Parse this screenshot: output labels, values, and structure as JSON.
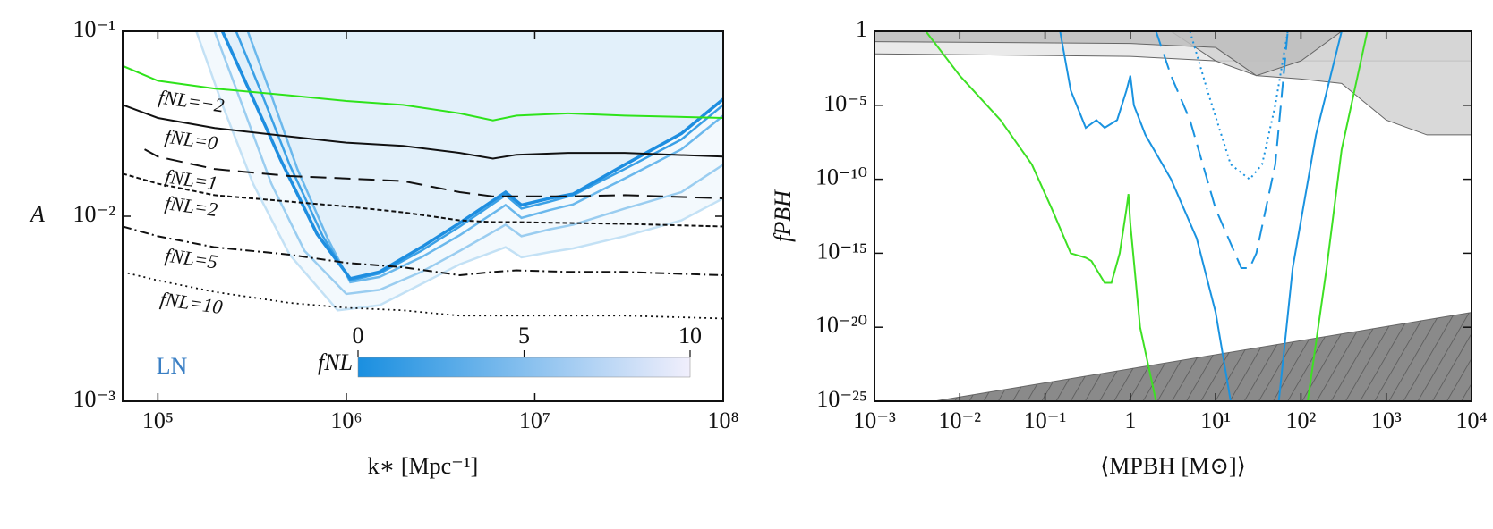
{
  "chart_data": [
    {
      "type": "line",
      "xlabel": "k∗ [Mpc⁻¹]",
      "ylabel": "A",
      "log_x": true,
      "log_y": true,
      "xlim": [
        65000,
        100000000
      ],
      "ylim": [
        0.001,
        0.1
      ],
      "xticks": [
        {
          "value": 100000,
          "label": "10⁵"
        },
        {
          "value": 1000000,
          "label": "10⁶"
        },
        {
          "value": 10000000,
          "label": "10⁷"
        },
        {
          "value": 100000000,
          "label": "10⁸"
        }
      ],
      "yticks": [
        {
          "value": 0.001,
          "label": "10⁻³"
        },
        {
          "value": 0.01,
          "label": "10⁻²"
        },
        {
          "value": 0.1,
          "label": "10⁻¹"
        }
      ],
      "annotation": "LN",
      "colorbar": {
        "label": "fNL",
        "lim": [
          0,
          10
        ],
        "ticks": [
          0,
          5,
          10
        ],
        "colors": [
          "#1a8fe0",
          "#f1effc"
        ]
      },
      "series": [
        {
          "color": "#c3e1f5",
          "width": 2.5,
          "dash": "solid",
          "fill": "#f3f9fd",
          "x": [
            160000,
            220000,
            320000,
            500000,
            900000,
            1500000,
            2500000,
            4000000,
            7000000,
            8500000,
            12000000,
            16000000,
            30000000,
            60000000,
            100000000
          ],
          "values": [
            0.1,
            0.04,
            0.015,
            0.0062,
            0.0031,
            0.0033,
            0.0043,
            0.0055,
            0.0068,
            0.006,
            0.0064,
            0.0067,
            0.0078,
            0.0095,
            0.0125
          ]
        },
        {
          "color": "#9acdf0",
          "width": 2.5,
          "dash": "solid",
          "x": [
            200000,
            280000,
            400000,
            600000,
            1000000,
            1500000,
            2500000,
            4000000,
            7000000,
            8500000,
            12000000,
            16000000,
            30000000,
            60000000,
            100000000
          ],
          "values": [
            0.1,
            0.04,
            0.015,
            0.0065,
            0.0038,
            0.004,
            0.005,
            0.0065,
            0.009,
            0.0078,
            0.0085,
            0.009,
            0.011,
            0.0135,
            0.019
          ]
        },
        {
          "color": "#6bb8ec",
          "width": 2.5,
          "dash": "solid",
          "x": [
            300000,
            400000,
            550000,
            800000,
            1050000,
            1500000,
            2500000,
            4000000,
            7000000,
            8500000,
            12000000,
            16000000,
            30000000,
            60000000,
            100000000
          ],
          "values": [
            0.1,
            0.045,
            0.018,
            0.0075,
            0.0044,
            0.0047,
            0.006,
            0.0079,
            0.0115,
            0.0098,
            0.0108,
            0.0116,
            0.016,
            0.023,
            0.035
          ]
        },
        {
          "color": "#3aa0e6",
          "width": 2.5,
          "dash": "solid",
          "x": [
            260000,
            350000,
            500000,
            750000,
            1050000,
            1500000,
            2500000,
            4000000,
            7000000,
            8500000,
            12000000,
            16000000,
            30000000,
            60000000,
            100000000
          ],
          "values": [
            0.1,
            0.048,
            0.019,
            0.0078,
            0.0045,
            0.0049,
            0.0065,
            0.0088,
            0.013,
            0.011,
            0.012,
            0.013,
            0.018,
            0.026,
            0.04
          ]
        },
        {
          "color": "#1e8ee0",
          "width": 3.5,
          "dash": "solid",
          "fill": "#e2f0fa",
          "x": [
            220000,
            300000,
            450000,
            700000,
            1050000,
            1500000,
            2500000,
            4000000,
            7000000,
            8500000,
            12000000,
            16000000,
            30000000,
            60000000,
            100000000
          ],
          "values": [
            0.1,
            0.05,
            0.02,
            0.008,
            0.0046,
            0.005,
            0.0068,
            0.0092,
            0.0135,
            0.0115,
            0.0125,
            0.0132,
            0.019,
            0.028,
            0.043
          ]
        },
        {
          "name": "fNL=−2",
          "color": "#2ee31a",
          "width": 2,
          "dash": "solid",
          "x": [
            65000,
            100000,
            200000,
            500000,
            1000000,
            2000000,
            4000000,
            6000000,
            8000000,
            15000000,
            30000000,
            100000000
          ],
          "values": [
            0.065,
            0.054,
            0.049,
            0.045,
            0.042,
            0.04,
            0.036,
            0.033,
            0.035,
            0.036,
            0.035,
            0.034
          ]
        },
        {
          "name": "fNL=0",
          "color": "#111111",
          "width": 2,
          "dash": "solid",
          "x": [
            65000,
            100000,
            200000,
            500000,
            1000000,
            2000000,
            4000000,
            6000000,
            8000000,
            15000000,
            30000000,
            100000000
          ],
          "values": [
            0.04,
            0.034,
            0.03,
            0.027,
            0.025,
            0.024,
            0.022,
            0.0205,
            0.0215,
            0.022,
            0.022,
            0.021
          ]
        },
        {
          "name": "fNL=1",
          "color": "#111111",
          "width": 2,
          "dash": "long-dash",
          "x": [
            85000,
            100000,
            200000,
            500000,
            1000000,
            2000000,
            4000000,
            6000000,
            8000000,
            15000000,
            30000000,
            100000000
          ],
          "values": [
            0.023,
            0.021,
            0.018,
            0.0165,
            0.016,
            0.0155,
            0.0135,
            0.0128,
            0.0128,
            0.0128,
            0.013,
            0.0125
          ]
        },
        {
          "name": "fNL=2",
          "color": "#111111",
          "width": 2,
          "dash": "short-dash",
          "x": [
            65000,
            100000,
            200000,
            500000,
            1000000,
            2000000,
            4000000,
            6000000,
            8000000,
            15000000,
            30000000,
            100000000
          ],
          "values": [
            0.017,
            0.015,
            0.013,
            0.012,
            0.0113,
            0.0105,
            0.0095,
            0.0093,
            0.0093,
            0.0092,
            0.0091,
            0.0088
          ]
        },
        {
          "name": "fNL=5",
          "color": "#111111",
          "width": 2,
          "dash": "dash-dot",
          "x": [
            65000,
            100000,
            200000,
            500000,
            1000000,
            2000000,
            4000000,
            6000000,
            8000000,
            15000000,
            30000000,
            100000000
          ],
          "values": [
            0.0088,
            0.0078,
            0.0068,
            0.0062,
            0.0056,
            0.0053,
            0.0048,
            0.005,
            0.0051,
            0.005,
            0.005,
            0.0048
          ]
        },
        {
          "name": "fNL=10",
          "color": "#111111",
          "width": 1.8,
          "dash": "dotted",
          "x": [
            65000,
            100000,
            200000,
            500000,
            1000000,
            2000000,
            4000000,
            6000000,
            8000000,
            15000000,
            30000000,
            100000000
          ],
          "values": [
            0.005,
            0.0045,
            0.0039,
            0.0034,
            0.0032,
            0.0031,
            0.0029,
            0.0029,
            0.0029,
            0.0029,
            0.0029,
            0.0028
          ]
        }
      ]
    },
    {
      "type": "line",
      "xlabel": "⟨MPBH [M⊙]⟩",
      "ylabel": "fPBH",
      "log_x": true,
      "log_y": true,
      "xlim": [
        0.001,
        10000
      ],
      "ylim": [
        1e-25,
        1
      ],
      "xticks": [
        {
          "value": 0.001,
          "label": "10⁻³"
        },
        {
          "value": 0.01,
          "label": "10⁻²"
        },
        {
          "value": 0.1,
          "label": "10⁻¹"
        },
        1,
        {
          "value": 10,
          "label": "10¹"
        },
        {
          "value": 100,
          "label": "10²"
        },
        {
          "value": 1000,
          "label": "10³"
        },
        {
          "value": 10000,
          "label": "10⁴"
        }
      ],
      "yticks": [
        {
          "value": 1e-25,
          "label": "10⁻²⁵"
        },
        {
          "value": 1e-20,
          "label": "10⁻²⁰"
        },
        {
          "value": 1e-15,
          "label": "10⁻¹⁵"
        },
        {
          "value": 1e-10,
          "label": "10⁻¹⁰"
        },
        {
          "value": 1e-05,
          "label": "10⁻⁵"
        },
        1
      ],
      "regions": [
        {
          "side": "above",
          "fill": "#e6e6e6",
          "x": [
            0.001,
            1,
            10,
            10000
          ],
          "values": [
            0.03,
            0.02,
            0.01,
            0.01
          ]
        },
        {
          "side": "above",
          "fill": "#d2d2d2",
          "x": [
            3,
            10,
            30,
            100,
            300,
            1000,
            3000,
            10000
          ],
          "values": [
            1,
            0.01,
            0.001,
            0.0006,
            0.0003,
            1e-06,
            1e-07,
            1e-07
          ]
        },
        {
          "side": "above",
          "fill": "#bdbdbd",
          "x": [
            0.001,
            1,
            10,
            30,
            100,
            300
          ],
          "values": [
            0.2,
            0.15,
            0.08,
            0.001,
            0.01,
            1
          ]
        },
        {
          "side": "below",
          "fill": "#8a8a8a",
          "hatch": true,
          "x": [
            0.005,
            10000
          ],
          "values": [
            1e-25,
            1e-19
          ]
        }
      ],
      "series": [
        {
          "color": "#3ee024",
          "width": 2,
          "dash": "solid",
          "x": [
            0.004,
            0.01,
            0.03,
            0.07,
            0.12,
            0.2,
            0.3,
            0.35,
            0.5,
            0.6,
            0.75,
            0.9,
            0.95,
            1,
            1.3,
            2
          ],
          "values": [
            1,
            0.001,
            1e-06,
            1e-09,
            1e-12,
            1e-15,
            5e-16,
            3e-16,
            1e-17,
            1e-17,
            1e-15,
            1e-12,
            1e-11,
            1e-13,
            1e-20,
            1e-25
          ]
        },
        {
          "color": "#3ee024",
          "width": 2,
          "dash": "solid",
          "x": [
            120,
            200,
            300,
            600
          ],
          "values": [
            1e-25,
            1e-16,
            1e-08,
            1
          ]
        },
        {
          "color": "#1a93e0",
          "width": 2,
          "dash": "solid",
          "x": [
            0.15,
            0.2,
            0.3,
            0.4,
            0.5,
            0.7,
            0.9,
            1,
            1.1,
            1.5,
            3,
            6,
            10,
            15
          ],
          "values": [
            1,
            0.0001,
            3e-07,
            1e-06,
            3e-07,
            1e-06,
            0.0001,
            0.001,
            1e-05,
            1e-07,
            1e-10,
            1e-14,
            1e-19,
            1e-25
          ]
        },
        {
          "color": "#1a93e0",
          "width": 2,
          "dash": "solid",
          "x": [
            55,
            80,
            150,
            300
          ],
          "values": [
            1e-25,
            1e-16,
            1e-07,
            1
          ]
        },
        {
          "color": "#1a93e0",
          "width": 2,
          "dash": "long-dash",
          "x": [
            2,
            3,
            5,
            10,
            20,
            25,
            30,
            50,
            70
          ],
          "values": [
            1,
            0.001,
            1e-06,
            1e-12,
            1e-16,
            1e-16,
            1e-15,
            1e-09,
            1
          ]
        },
        {
          "color": "#1a93e0",
          "width": 2,
          "dash": "dotted",
          "x": [
            5,
            8,
            15,
            25,
            35,
            50,
            70
          ],
          "values": [
            1,
            0.0001,
            1e-09,
            1e-10,
            1e-09,
            1e-05,
            1
          ]
        }
      ]
    }
  ]
}
